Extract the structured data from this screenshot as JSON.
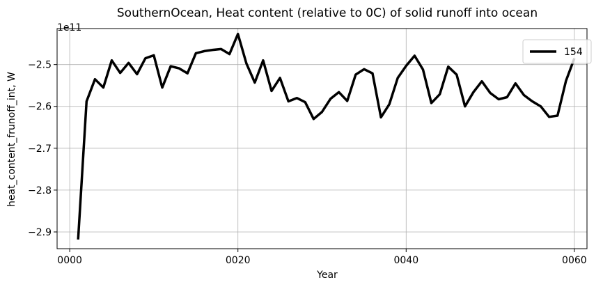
{
  "chart_data": {
    "type": "line",
    "title": "SouthernOcean, Heat content (relative to 0C) of solid runoff into ocean",
    "xlabel": "Year",
    "ylabel": "heat_content_frunoff_int, W",
    "y_offset_label": "1e11",
    "xlim": [
      -1.5,
      61.5
    ],
    "ylim": [
      -2.94,
      -2.414
    ],
    "x_ticks": [
      0,
      20,
      40,
      60
    ],
    "x_tick_labels": [
      "0000",
      "0020",
      "0040",
      "0060"
    ],
    "y_ticks": [
      -2.9,
      -2.8,
      -2.7,
      -2.6,
      -2.5
    ],
    "y_tick_labels": [
      "−2.9",
      "−2.8",
      "−2.7",
      "−2.6",
      "−2.5"
    ],
    "grid": true,
    "legend_position": "top-right",
    "series": [
      {
        "name": "154",
        "color": "#000000",
        "x": [
          1,
          2,
          3,
          4,
          5,
          6,
          7,
          8,
          9,
          10,
          11,
          12,
          13,
          14,
          15,
          16,
          17,
          18,
          19,
          20,
          21,
          22,
          23,
          24,
          25,
          26,
          27,
          28,
          29,
          30,
          31,
          32,
          33,
          34,
          35,
          36,
          37,
          38,
          39,
          40,
          41,
          42,
          43,
          44,
          45,
          46,
          47,
          48,
          49,
          50,
          51,
          52,
          53,
          54,
          55,
          56,
          57,
          58,
          59,
          60
        ],
        "values": [
          -2.918,
          -2.588,
          -2.535,
          -2.555,
          -2.49,
          -2.52,
          -2.496,
          -2.523,
          -2.485,
          -2.478,
          -2.555,
          -2.504,
          -2.509,
          -2.521,
          -2.473,
          -2.468,
          -2.465,
          -2.463,
          -2.475,
          -2.427,
          -2.497,
          -2.543,
          -2.49,
          -2.563,
          -2.532,
          -2.588,
          -2.58,
          -2.59,
          -2.63,
          -2.613,
          -2.582,
          -2.566,
          -2.587,
          -2.524,
          -2.511,
          -2.521,
          -2.626,
          -2.595,
          -2.532,
          -2.503,
          -2.479,
          -2.512,
          -2.592,
          -2.571,
          -2.505,
          -2.524,
          -2.6,
          -2.566,
          -2.54,
          -2.568,
          -2.583,
          -2.578,
          -2.545,
          -2.573,
          -2.588,
          -2.6,
          -2.625,
          -2.622,
          -2.539,
          -2.485
        ]
      }
    ]
  }
}
